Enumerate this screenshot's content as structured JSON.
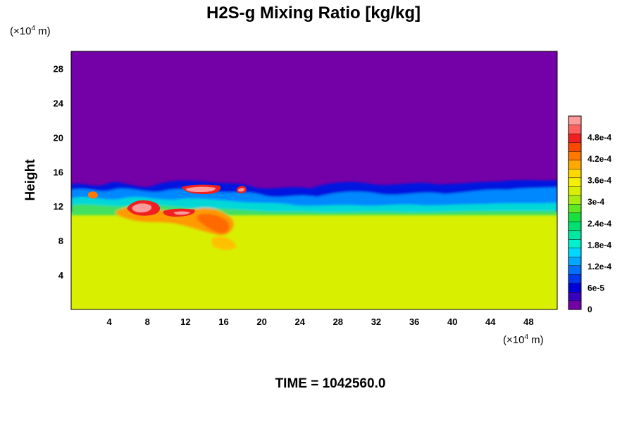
{
  "chart_data": {
    "type": "heatmap",
    "title": "H2S-g Mixing Ratio [kg/kg]",
    "ylabel": "Height",
    "xlabel": "",
    "x_unit_prefix": "(×10",
    "x_unit_exp": "4",
    "x_unit_suffix": " m)",
    "y_unit_prefix": "(×10",
    "y_unit_exp": "4",
    "y_unit_suffix": " m)",
    "xlim": [
      0,
      51
    ],
    "ylim": [
      0,
      30
    ],
    "x_ticks": [
      "4",
      "8",
      "12",
      "16",
      "20",
      "24",
      "28",
      "32",
      "36",
      "40",
      "44",
      "48"
    ],
    "x_tick_values": [
      4,
      8,
      12,
      16,
      20,
      24,
      28,
      32,
      36,
      40,
      44,
      48
    ],
    "y_ticks": [
      "4",
      "8",
      "12",
      "16",
      "20",
      "24",
      "28"
    ],
    "y_tick_values": [
      4,
      8,
      12,
      16,
      20,
      24,
      28
    ],
    "time_label": "TIME = 1042560.0",
    "colorbar": {
      "min": 0,
      "max": 0.00054,
      "tick_labels": [
        "0",
        "6e-5",
        "1.2e-4",
        "1.8e-4",
        "2.4e-4",
        "3e-4",
        "3.6e-4",
        "4.2e-4",
        "4.8e-4"
      ],
      "tick_values": [
        0,
        6e-05,
        0.00012,
        0.00018,
        0.00024,
        0.0003,
        0.00036,
        0.00042,
        0.00048
      ],
      "colors": [
        "#7400a8",
        "#3a00c0",
        "#0000d8",
        "#0038f0",
        "#0070ff",
        "#00a8ff",
        "#00d8ff",
        "#00f0d0",
        "#00e8a0",
        "#00e070",
        "#18e040",
        "#60e820",
        "#a8ec10",
        "#d8f000",
        "#f4f000",
        "#ffd800",
        "#ffa800",
        "#ff7800",
        "#ff4800",
        "#f02020",
        "#ff6060",
        "#ff9a9a"
      ]
    },
    "regions": [
      {
        "name": "upper",
        "value": 0.0,
        "color": "#7400a8",
        "y_range": [
          14.5,
          30
        ]
      },
      {
        "name": "mixing_layer",
        "value_range": [
          3e-05,
          0.0003
        ],
        "y_range": [
          10.5,
          15
        ]
      },
      {
        "name": "lower",
        "value": 0.00037,
        "color": "#d8f000",
        "y_range": [
          0,
          11
        ]
      }
    ],
    "hotspots": [
      {
        "x": 8,
        "y": 12.2,
        "value": 0.0005
      },
      {
        "x": 14.5,
        "y": 13.8,
        "value": 0.0005
      },
      {
        "x": 12.5,
        "y": 11.6,
        "value": 0.00048
      },
      {
        "x": 17,
        "y": 10.5,
        "value": 0.00044
      }
    ]
  }
}
